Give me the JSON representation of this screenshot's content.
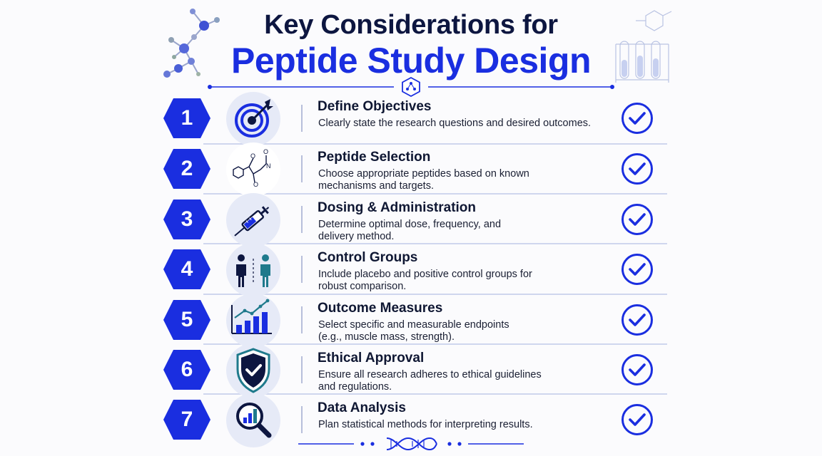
{
  "header": {
    "title_line1": "Key Considerations for",
    "title_line2": "Peptide Study Design"
  },
  "colors": {
    "accent": "#1a2ee0",
    "navy": "#0d1640",
    "teal": "#1f7a8c",
    "icon_bg": "#e6eaf7"
  },
  "items": [
    {
      "number": "1",
      "title": "Define Objectives",
      "description": "Clearly state the research questions and desired outcomes.",
      "icon": "target-icon"
    },
    {
      "number": "2",
      "title": "Peptide Selection",
      "description": "Choose appropriate peptides based on known mechanisms and targets.",
      "icon": "molecule-structure-icon"
    },
    {
      "number": "3",
      "title": "Dosing & Administration",
      "description": "Determine optimal dose, frequency, and delivery method.",
      "icon": "syringe-icon"
    },
    {
      "number": "4",
      "title": "Control Groups",
      "description": "Include placebo and positive control groups for robust comparison.",
      "icon": "people-icon"
    },
    {
      "number": "5",
      "title": "Outcome Measures",
      "description": "Select specific and measurable endpoints (e.g., muscle mass, strength).",
      "icon": "bar-chart-trend-icon"
    },
    {
      "number": "6",
      "title": "Ethical Approval",
      "description": "Ensure all research adheres to ethical guidelines and regulations.",
      "icon": "shield-check-icon"
    },
    {
      "number": "7",
      "title": "Data Analysis",
      "description": "Plan statistical methods for interpreting results.",
      "icon": "magnifier-chart-icon"
    }
  ]
}
